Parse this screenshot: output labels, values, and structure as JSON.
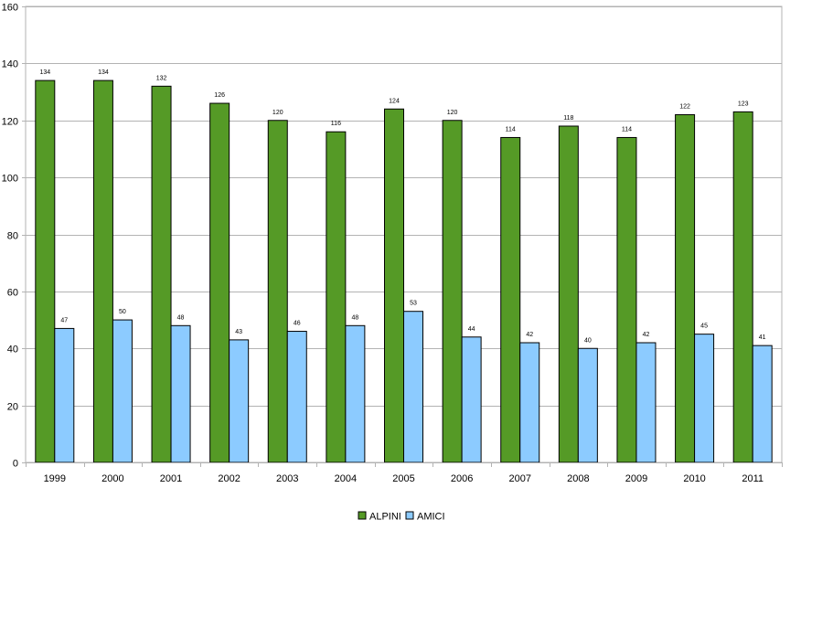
{
  "chart_data": {
    "type": "bar",
    "categories": [
      "1999",
      "2000",
      "2001",
      "2002",
      "2003",
      "2004",
      "2005",
      "2006",
      "2007",
      "2008",
      "2009",
      "2010",
      "2011"
    ],
    "series": [
      {
        "name": "ALPINI",
        "color": "#559a26",
        "values": [
          134,
          134,
          132,
          126,
          120,
          116,
          124,
          120,
          114,
          118,
          114,
          122,
          123
        ]
      },
      {
        "name": "AMICI",
        "color": "#8ccbff",
        "values": [
          47,
          50,
          48,
          43,
          46,
          48,
          53,
          44,
          42,
          40,
          42,
          45,
          41
        ]
      }
    ],
    "ylim": [
      0,
      160
    ],
    "yticks": [
      0,
      20,
      40,
      60,
      80,
      100,
      120,
      140,
      160
    ],
    "grid": true,
    "legend": "bottom",
    "title": "",
    "xlabel": "",
    "ylabel": ""
  }
}
